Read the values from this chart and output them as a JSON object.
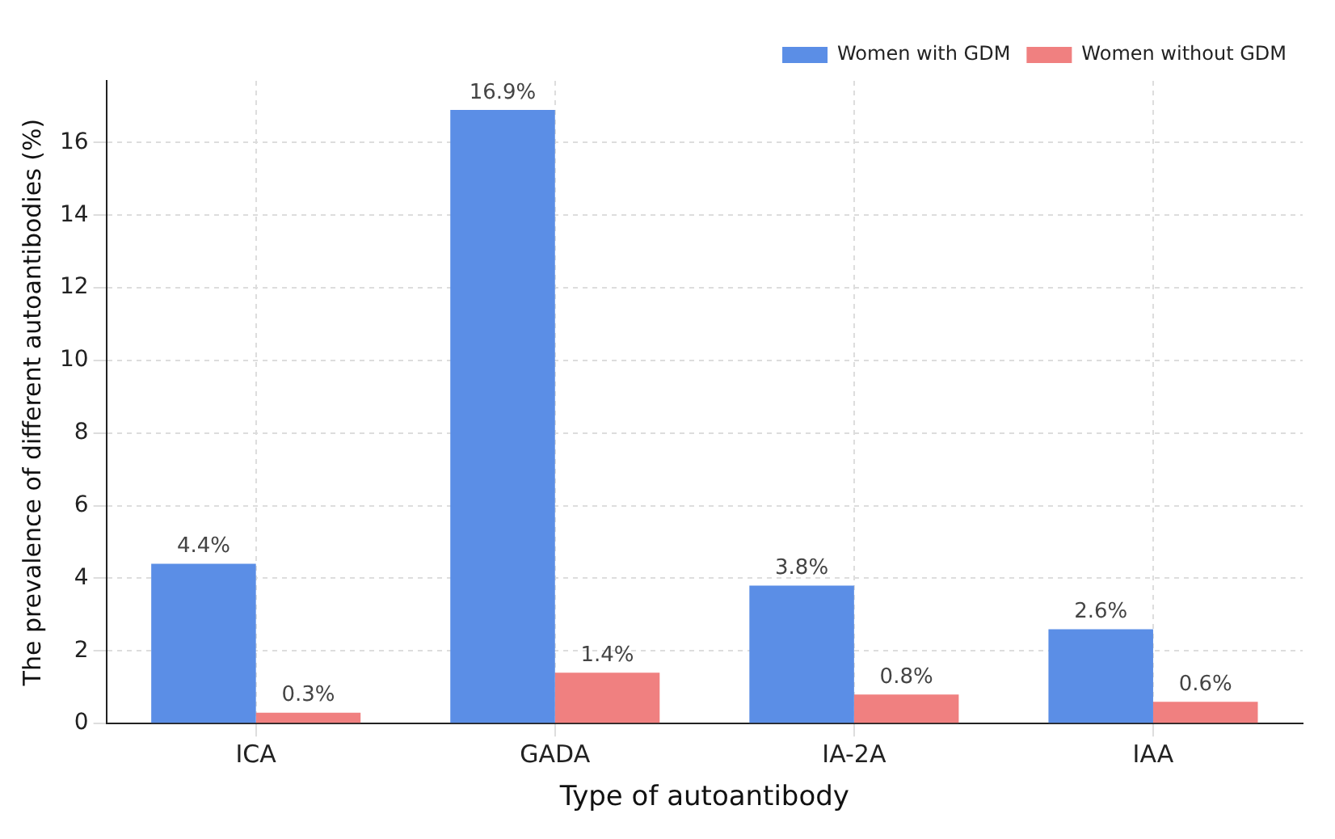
{
  "chart_data": {
    "type": "bar",
    "xlabel": "Type of autoantibody",
    "ylabel": "The prevalence of different autoantibodies (%)",
    "categories": [
      "ICA",
      "GADA",
      "IA-2A",
      "IAA"
    ],
    "series": [
      {
        "name": "Women with GDM",
        "color": "#5b8ee6",
        "values": [
          4.4,
          16.9,
          3.8,
          2.6
        ],
        "value_labels": [
          "4.4%",
          "16.9%",
          "3.8%",
          "2.6%"
        ]
      },
      {
        "name": "Women without GDM",
        "color": "#f08080",
        "values": [
          0.3,
          1.4,
          0.8,
          0.6
        ],
        "value_labels": [
          "0.3%",
          "1.4%",
          "0.8%",
          "0.6%"
        ]
      }
    ],
    "ylim": [
      0,
      17.7
    ],
    "yticks": [
      0,
      2,
      4,
      6,
      8,
      10,
      12,
      14,
      16
    ],
    "grid": true,
    "legend": "top right"
  }
}
